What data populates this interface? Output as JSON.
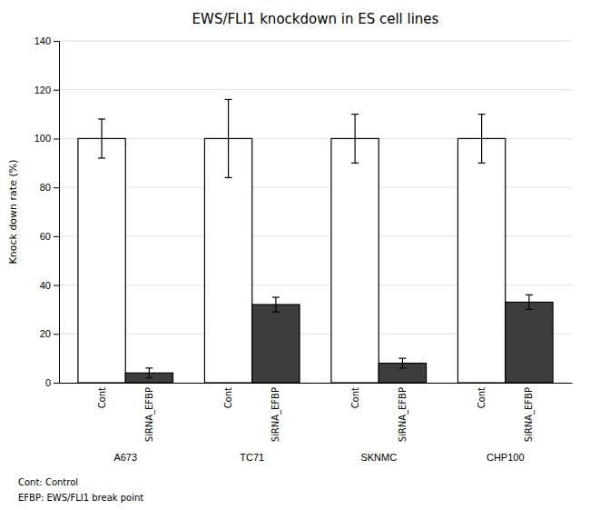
{
  "chart_data": {
    "type": "bar",
    "title": "EWS/FLI1 knockdown in ES cell lines",
    "ylabel": "Knock down rate (%)",
    "categories": [
      "A673",
      "TC71",
      "SKNMC",
      "CHP100"
    ],
    "series": [
      {
        "name": "Cont",
        "color": "#ffffff",
        "values": [
          100,
          100,
          100,
          100
        ],
        "errors": [
          8,
          16,
          10,
          10
        ]
      },
      {
        "name": "SiRNA_EFBP",
        "color": "#3d3d3d",
        "values": [
          4,
          32,
          8,
          33
        ],
        "errors": [
          2,
          3,
          2,
          3
        ]
      }
    ],
    "ylim": [
      0,
      140
    ],
    "yticks": [
      0,
      20,
      40,
      60,
      80,
      100,
      120,
      140
    ],
    "grid": true,
    "annotations": [
      "Cont: Control",
      "EFBP: EWS/FLI1 break point"
    ]
  }
}
